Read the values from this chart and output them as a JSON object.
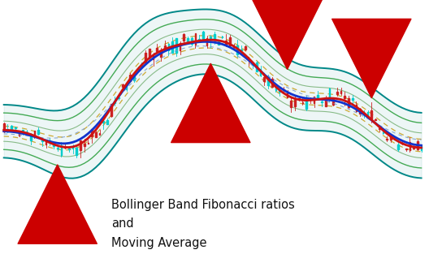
{
  "annotation": "Bollinger Band Fibonacci ratios\nand\nMoving Average",
  "bg_color": "#ffffff",
  "band_outer_color": "#008888",
  "band_mid1_color": "#44aa55",
  "band_mid2_color": "#88bb88",
  "band_dashed_color": "#ccaa33",
  "ma_blue_color": "#1133cc",
  "ma_red_color": "#cc1111",
  "ma_blue_dash_color": "#7799cc",
  "candle_up_color": "#00cccc",
  "candle_down_color": "#cc2222",
  "arrow_color": "#cc0000",
  "n_points": 110,
  "seed": 7
}
